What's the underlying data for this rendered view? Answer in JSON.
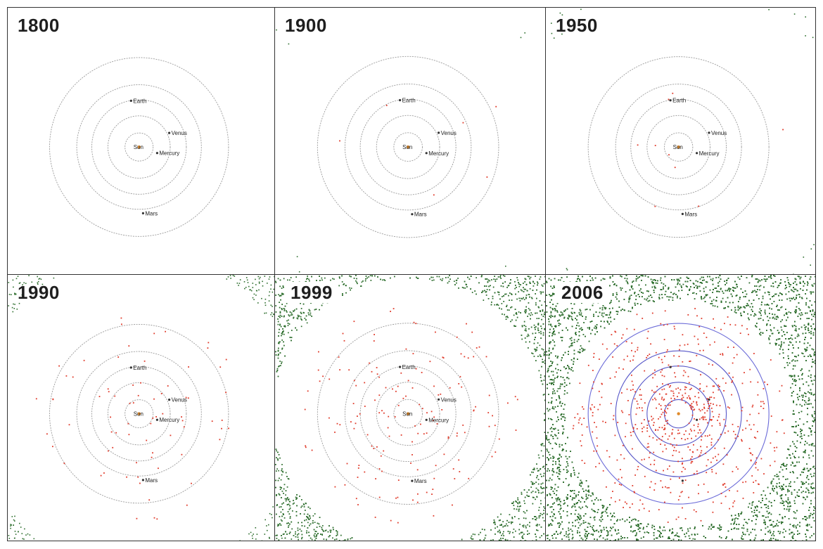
{
  "colors": {
    "background": "#ffffff",
    "border": "#333333",
    "asteroid_outer": "#2d6e2d",
    "asteroid_inner": "#e03a2a",
    "orbit": "#9a9a9a",
    "orbit_2006": "#5656c8",
    "planet": "#333333",
    "sun": "#e08a2a",
    "label": "#222222",
    "year_text": "#1e1e1e"
  },
  "panels": [
    {
      "id": "p1800",
      "year": "1800",
      "boxed": false,
      "outer_density": 0,
      "inner_density": 0,
      "ring_gap": 0,
      "orbit_style": "dotted",
      "labels": {
        "sun": "Sun",
        "mercury": "Mercury",
        "venus": "Venus",
        "earth": "Earth",
        "mars": "Mars"
      }
    },
    {
      "id": "p1900",
      "year": "1900",
      "boxed": false,
      "outer_density": 0.08,
      "inner_density": 0.02,
      "ring_gap": 0.55,
      "orbit_style": "dotted",
      "labels": {
        "sun": "Sun",
        "mercury": "Mercury",
        "venus": "Venus",
        "earth": "Earth",
        "mars": "Mars"
      }
    },
    {
      "id": "p1950",
      "year": "1950",
      "boxed": false,
      "outer_density": 0.55,
      "inner_density": 0.03,
      "ring_gap": 0.6,
      "orbit_style": "dotted",
      "labels": {
        "sun": "Sun",
        "mercury": "Mercury",
        "venus": "Venus",
        "earth": "Earth",
        "mars": "Mars"
      }
    },
    {
      "id": "p1990",
      "year": "1990",
      "boxed": false,
      "outer_density": 3.2,
      "inner_density": 0.25,
      "ring_gap": 0.6,
      "orbit_style": "dotted",
      "labels": {
        "sun": "Sun",
        "mercury": "Mercury",
        "venus": "Venus",
        "earth": "Earth",
        "mars": "Mars"
      }
    },
    {
      "id": "p1999",
      "year": "1999",
      "boxed": true,
      "outer_density": 14,
      "inner_density": 0.55,
      "ring_gap": 0.5,
      "orbit_style": "dotted",
      "labels": {
        "sun": "Sun",
        "mercury": "Mercury",
        "venus": "Venus",
        "earth": "Earth",
        "mars": "Mars"
      }
    },
    {
      "id": "p2006",
      "year": "2006",
      "boxed": true,
      "outer_density": 30,
      "inner_density": 2.2,
      "ring_gap": 0.42,
      "orbit_style": "solid",
      "labels": {
        "sun": "",
        "mercury": "",
        "venus": "",
        "earth": "",
        "mars": ""
      }
    }
  ]
}
